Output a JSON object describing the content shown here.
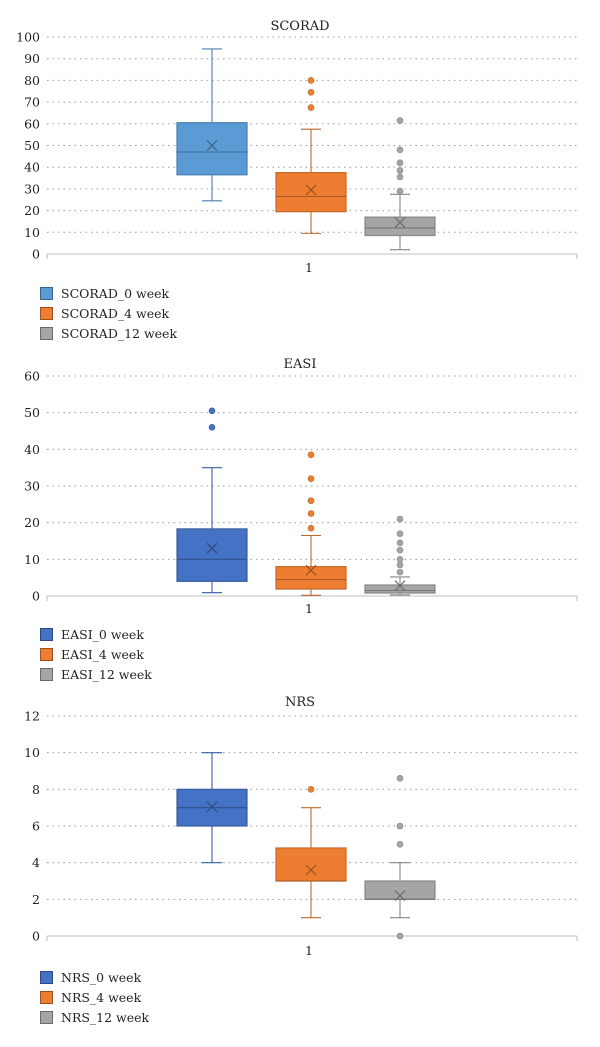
{
  "chart_data": [
    {
      "type": "box",
      "title": "SCORAD",
      "categories": [
        "1"
      ],
      "ylim": [
        0,
        100
      ],
      "yticks": [
        0,
        10,
        20,
        30,
        40,
        50,
        60,
        70,
        80,
        90,
        100
      ],
      "grid": true,
      "legend_position": "bottom-left",
      "series": [
        {
          "name": "SCORAD_0 week",
          "color": "#5b9bd5",
          "min": 24.5,
          "q1": 36.5,
          "median": 47,
          "q3": 60.5,
          "max": 94.5,
          "mean": 50,
          "outliers": []
        },
        {
          "name": "SCORAD_4 week",
          "color": "#ed7d31",
          "min": 9.5,
          "q1": 19.5,
          "median": 26.5,
          "q3": 37.5,
          "max": 57.5,
          "mean": 29.5,
          "outliers": [
            67.5,
            74.5,
            80
          ]
        },
        {
          "name": "SCORAD_12 week",
          "color": "#a5a5a5",
          "min": 2,
          "q1": 8.5,
          "median": 12,
          "q3": 17,
          "max": 27.5,
          "mean": 14.5,
          "outliers": [
            29,
            35.5,
            38.5,
            42,
            48,
            61.5
          ]
        }
      ]
    },
    {
      "type": "box",
      "title": "EASI",
      "categories": [
        "1"
      ],
      "ylim": [
        0,
        60
      ],
      "yticks": [
        0,
        10,
        20,
        30,
        40,
        50,
        60
      ],
      "grid": true,
      "legend_position": "bottom-left",
      "series": [
        {
          "name": "EASI_0 week",
          "color": "#4472c4",
          "min": 0.9,
          "q1": 4,
          "median": 10,
          "q3": 18.3,
          "max": 35,
          "mean": 13,
          "outliers": [
            46,
            50.5
          ]
        },
        {
          "name": "EASI_4 week",
          "color": "#ed7d31",
          "min": 0.2,
          "q1": 1.9,
          "median": 4.5,
          "q3": 8,
          "max": 16.5,
          "mean": 7,
          "outliers": [
            18.5,
            22.5,
            26,
            32,
            38.5
          ]
        },
        {
          "name": "EASI_12 week",
          "color": "#a5a5a5",
          "min": 0.3,
          "q1": 0.8,
          "median": 1.5,
          "q3": 3,
          "max": 5.2,
          "mean": 2.8,
          "outliers": [
            6.5,
            8.5,
            10,
            12.5,
            14.5,
            17,
            21
          ]
        }
      ]
    },
    {
      "type": "box",
      "title": "NRS",
      "categories": [
        "1"
      ],
      "ylim": [
        0,
        12
      ],
      "yticks": [
        0,
        2,
        4,
        6,
        8,
        10,
        12
      ],
      "grid": true,
      "legend_position": "bottom-left",
      "series": [
        {
          "name": "NRS_0 week",
          "color": "#4472c4",
          "min": 4,
          "q1": 6,
          "median": 7,
          "q3": 8,
          "max": 10,
          "mean": 7.05,
          "outliers": []
        },
        {
          "name": "NRS_4 week",
          "color": "#ed7d31",
          "min": 1,
          "q1": 3,
          "median": 3,
          "q3": 4.8,
          "max": 7,
          "mean": 3.6,
          "outliers": [
            8
          ]
        },
        {
          "name": "NRS_12 week",
          "color": "#a5a5a5",
          "min": 1,
          "q1": 2,
          "median": 2,
          "q3": 3,
          "max": 4,
          "mean": 2.2,
          "outliers": [
            0,
            5,
            6,
            8.6
          ]
        }
      ]
    }
  ]
}
